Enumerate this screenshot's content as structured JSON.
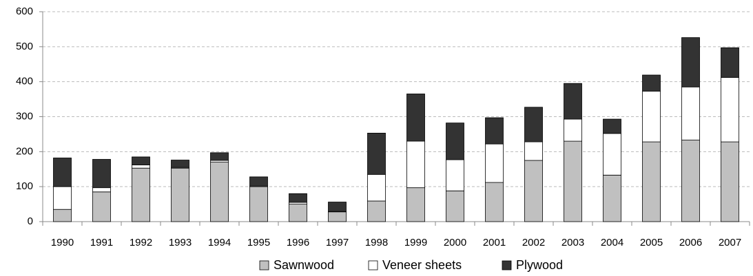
{
  "chart_data": {
    "type": "stacked-bar",
    "categories": [
      "1990",
      "1991",
      "1992",
      "1993",
      "1994",
      "1995",
      "1996",
      "1997",
      "1998",
      "1999",
      "2000",
      "2001",
      "2002",
      "2003",
      "2004",
      "2005",
      "2006",
      "2007"
    ],
    "series": [
      {
        "name": "Sawnwood",
        "color": "#c0c0c0",
        "values": [
          35,
          85,
          153,
          153,
          170,
          100,
          50,
          28,
          59,
          97,
          88,
          112,
          175,
          230,
          133,
          228,
          233,
          228
        ]
      },
      {
        "name": "Veneer sheets",
        "color": "#ffffff",
        "values": [
          65,
          12,
          9,
          2,
          5,
          2,
          5,
          1,
          76,
          133,
          89,
          110,
          53,
          63,
          119,
          145,
          152,
          184
        ]
      },
      {
        "name": "Plywood",
        "color": "#333333",
        "values": [
          82,
          81,
          23,
          21,
          22,
          26,
          25,
          27,
          118,
          135,
          105,
          75,
          99,
          102,
          41,
          46,
          141,
          85
        ]
      }
    ],
    "ylim": [
      0,
      600
    ],
    "yticks": [
      0,
      100,
      200,
      300,
      400,
      500,
      600
    ],
    "grid": true,
    "legend": "bottom"
  }
}
